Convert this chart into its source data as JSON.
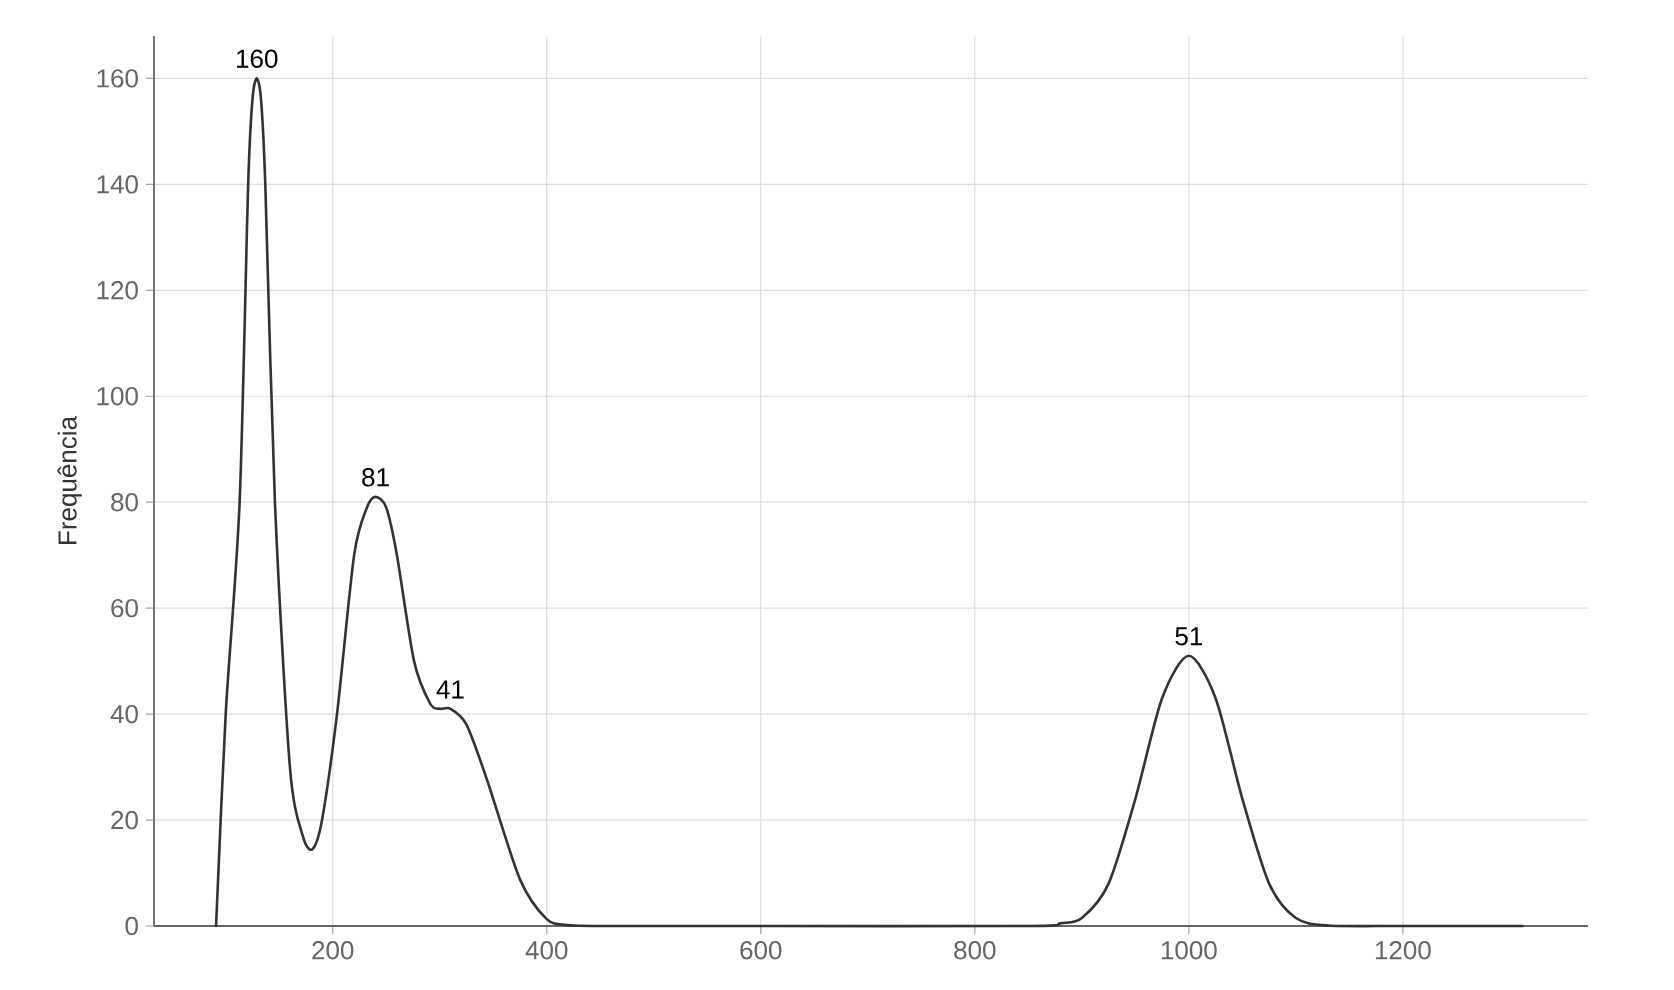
{
  "chart_data": {
    "type": "line",
    "ylabel": "Frequência",
    "color": "#333333",
    "x": [
      91,
      100,
      113,
      121,
      125,
      129,
      133,
      137,
      146,
      160,
      172,
      181,
      190,
      204,
      220,
      232,
      240,
      250,
      260,
      276,
      291,
      300,
      310,
      325,
      344,
      375,
      400,
      419,
      450,
      600,
      850,
      880,
      900,
      925,
      950,
      975,
      1000,
      1025,
      1050,
      1075,
      1100,
      1130,
      1200,
      1312
    ],
    "values": [
      0,
      40,
      80,
      140,
      156,
      160,
      156,
      140,
      80,
      30,
      17,
      14.5,
      20,
      40,
      70,
      79,
      81,
      79,
      70,
      50,
      42,
      41,
      41,
      38,
      27.7,
      8.8,
      1.3,
      0.2,
      0,
      0,
      0,
      0.5,
      1.5,
      8,
      24,
      43,
      51,
      43,
      24,
      8,
      1.5,
      0.1,
      0,
      0
    ],
    "xlim": [
      33,
      1373
    ],
    "ylim": [
      0,
      168
    ],
    "xticks": [
      200,
      400,
      600,
      800,
      1000,
      1200
    ],
    "yticks": [
      0,
      20,
      40,
      60,
      80,
      100,
      120,
      140,
      160
    ],
    "grid": true,
    "line_style": "solid",
    "annotations": [
      {
        "text": "160",
        "x": 129,
        "y": 160
      },
      {
        "text": "81",
        "x": 240,
        "y": 81
      },
      {
        "text": "41",
        "x": 310,
        "y": 41
      },
      {
        "text": "51",
        "x": 1000,
        "y": 51
      }
    ]
  }
}
